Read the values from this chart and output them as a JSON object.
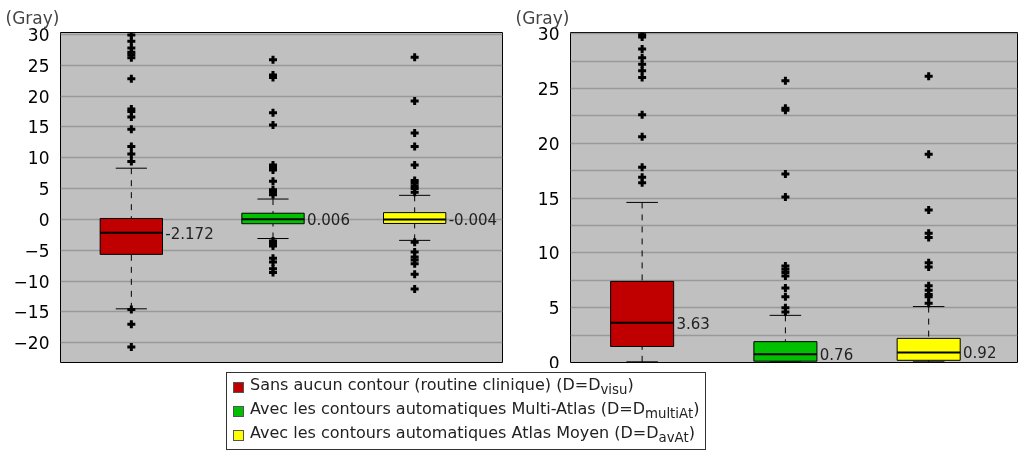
{
  "chart_data": [
    {
      "type": "box",
      "ylabel": "(Gray)",
      "categories": [
        null,
        null,
        null
      ],
      "ylim": [
        -23.2,
        30.3
      ],
      "yticks": [
        -20,
        -15,
        -10,
        -5,
        0,
        5,
        10,
        15,
        20,
        25,
        30
      ],
      "grid": "y",
      "tick_labels": "y",
      "legend": "bottom",
      "series": [
        {
          "name": "Sans aucun contour (routine clinique) (D=D$_{visu}$)",
          "color": "#c00000",
          "boxes": [
            {
              "low": -14.5,
              "q1": -5.67,
              "median": -2.172,
              "q3": 0.15,
              "high": 8.3,
              "outliers": [
                29.9,
                28.9,
                27.8,
                27.1,
                26.7,
                26.2,
                22.8,
                17.9,
                17.5,
                16.6,
                14.6,
                11.8,
                10.6,
                9.4,
                -14.6,
                -17.0,
                -20.7
              ]
            },
            null,
            null
          ],
          "value_labels": [
            "-2.172",
            null,
            null
          ]
        },
        {
          "name": "Avec les contours automatiques Multi-Atlas (D=D$_{multiAt}$)",
          "color": "#00c000",
          "boxes": [
            null,
            {
              "low": -3.1,
              "q1": -0.7,
              "median": 0.006,
              "q3": 1.0,
              "high": 3.3,
              "outliers": [
                25.9,
                23.4,
                23.0,
                17.3,
                15.3,
                8.8,
                8.4,
                8.0,
                6.2,
                4.8,
                4.4,
                4.0,
                -3.5,
                -3.9,
                -4.3,
                -6.3,
                -6.9,
                -8.0,
                -8.6
              ]
            },
            null
          ],
          "value_labels": [
            null,
            "0.006",
            null
          ]
        },
        {
          "name": "Avec les contours automatiques Atlas Moyen (D=D$_{avAt}$)",
          "color": "#ffff00",
          "boxes": [
            null,
            null,
            {
              "low": -3.4,
              "q1": -0.66,
              "median": -0.004,
              "q3": 1.1,
              "high": 3.9,
              "outliers": [
                26.3,
                19.2,
                14.0,
                11.8,
                8.8,
                6.3,
                5.9,
                5.4,
                5.0,
                4.4,
                -3.7,
                -5.3,
                -6.1,
                -6.6,
                -7.2,
                -8.9,
                -11.3
              ]
            }
          ],
          "value_labels": [
            null,
            null,
            "-0.004"
          ]
        }
      ]
    },
    {
      "type": "box",
      "ylabel": "(Gray)",
      "categories": [
        null,
        null,
        null
      ],
      "ylim": [
        0,
        30.1
      ],
      "yticks": [
        0,
        {
          "value": 2.5,
          "label": null
        },
        5,
        {
          "value": 7.5,
          "label": null
        },
        10,
        {
          "value": 12.5,
          "label": null
        },
        15,
        {
          "value": 17.5,
          "label": null
        },
        20,
        {
          "value": 22.5,
          "label": null
        },
        25,
        {
          "value": 27.5,
          "label": null
        },
        30
      ],
      "grid": "y",
      "tick_labels": "y",
      "legend": "bottom",
      "series": [
        {
          "name": "Sans aucun contour (routine clinique) (D=D$_{visu}$)",
          "color": "#c00000",
          "boxes": [
            {
              "low": 0.06,
              "q1": 1.46,
              "median": 3.63,
              "q3": 7.4,
              "high": 14.6,
              "outliers": [
                29.9,
                29.7,
                28.6,
                27.8,
                27.2,
                26.6,
                26.0,
                22.6,
                20.6,
                17.8,
                16.9,
                16.4
              ]
            },
            null,
            null
          ],
          "value_labels": [
            "3.63",
            null,
            null
          ]
        },
        {
          "name": "Avec les contours automatiques Multi-Atlas (D=D$_{multiAt}$)",
          "color": "#00c000",
          "boxes": [
            null,
            {
              "low": 0.06,
              "q1": 0.12,
              "median": 0.76,
              "q3": 1.9,
              "high": 4.3,
              "outliers": [
                25.7,
                23.2,
                23.0,
                17.2,
                15.1,
                8.8,
                8.5,
                8.2,
                7.9,
                6.8,
                6.0,
                5.0,
                4.6
              ]
            },
            null
          ],
          "value_labels": [
            null,
            "0.76",
            null
          ]
        },
        {
          "name": "Avec les contours automatiques Atlas Moyen (D=D$_{avAt}$)",
          "color": "#ffff00",
          "boxes": [
            null,
            null,
            {
              "low": 0.06,
              "q1": 0.2,
              "median": 0.92,
              "q3": 2.2,
              "high": 5.1,
              "outliers": [
                26.1,
                19.0,
                13.9,
                11.8,
                11.4,
                9.1,
                8.7,
                7.0,
                6.6,
                6.2,
                6.0,
                5.4
              ]
            }
          ],
          "value_labels": [
            null,
            null,
            "0.92"
          ]
        }
      ]
    }
  ]
}
